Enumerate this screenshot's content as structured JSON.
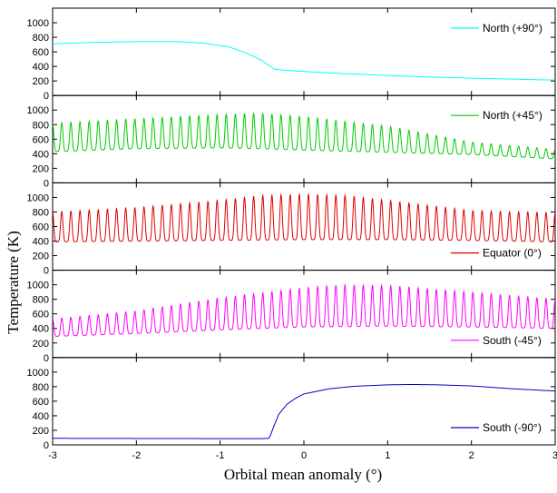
{
  "chart_data": {
    "type": "line",
    "xlabel": "Orbital mean anomaly (°)",
    "ylabel": "Temperature (K)",
    "xlim": [
      -3,
      3
    ],
    "ylim": [
      0,
      1200
    ],
    "xticks": [
      "-3",
      "-2",
      "-1",
      "0",
      "1",
      "2",
      "3"
    ],
    "yticks": [
      "0",
      "200",
      "400",
      "600",
      "800",
      "1000"
    ],
    "panels": [
      {
        "name": "North (+90°)",
        "color": "#00ffff",
        "legend": "top-right",
        "shape": "smooth",
        "points": [
          [
            -3,
            710
          ],
          [
            -2.5,
            730
          ],
          [
            -2,
            740
          ],
          [
            -1.5,
            740
          ],
          [
            -1.2,
            720
          ],
          [
            -0.9,
            670
          ],
          [
            -0.7,
            590
          ],
          [
            -0.5,
            480
          ],
          [
            -0.4,
            400
          ],
          [
            -0.35,
            360
          ],
          [
            -0.2,
            345
          ],
          [
            0,
            330
          ],
          [
            0.5,
            300
          ],
          [
            1,
            275
          ],
          [
            1.5,
            255
          ],
          [
            2,
            238
          ],
          [
            2.5,
            225
          ],
          [
            3,
            212
          ]
        ]
      },
      {
        "name": "North (+45°)",
        "color": "#00cc00",
        "legend": "top-right",
        "shape": "oscillating",
        "cycles": 55,
        "max": [
          [
            -3,
            820
          ],
          [
            -2,
            880
          ],
          [
            -1,
            940
          ],
          [
            -0.5,
            955
          ],
          [
            0,
            910
          ],
          [
            1,
            780
          ],
          [
            2,
            560
          ],
          [
            3,
            460
          ]
        ],
        "min": [
          [
            -3,
            430
          ],
          [
            -2,
            470
          ],
          [
            -1,
            480
          ],
          [
            -0.5,
            470
          ],
          [
            0,
            450
          ],
          [
            1,
            420
          ],
          [
            2,
            390
          ],
          [
            3,
            330
          ]
        ]
      },
      {
        "name": "Equator (0°)",
        "color": "#dd0000",
        "legend": "bottom-right",
        "shape": "oscillating",
        "cycles": 55,
        "max": [
          [
            -3,
            800
          ],
          [
            -2,
            860
          ],
          [
            -1,
            960
          ],
          [
            -0.5,
            1030
          ],
          [
            0,
            1045
          ],
          [
            0.5,
            1030
          ],
          [
            1,
            960
          ],
          [
            2,
            820
          ],
          [
            3,
            790
          ]
        ],
        "min": [
          [
            -3,
            390
          ],
          [
            -2,
            400
          ],
          [
            -1,
            410
          ],
          [
            0,
            420
          ],
          [
            1,
            420
          ],
          [
            2,
            410
          ],
          [
            3,
            390
          ]
        ]
      },
      {
        "name": "South (-45°)",
        "color": "#ff00ff",
        "legend": "bottom-right",
        "shape": "oscillating",
        "cycles": 55,
        "max": [
          [
            -3,
            530
          ],
          [
            -2,
            640
          ],
          [
            -1,
            820
          ],
          [
            0,
            960
          ],
          [
            0.5,
            1000
          ],
          [
            1,
            990
          ],
          [
            2,
            900
          ],
          [
            3,
            800
          ]
        ],
        "min": [
          [
            -3,
            290
          ],
          [
            -2,
            330
          ],
          [
            -1,
            380
          ],
          [
            0,
            420
          ],
          [
            1,
            430
          ],
          [
            2,
            420
          ],
          [
            3,
            400
          ]
        ]
      },
      {
        "name": "South (-90°)",
        "color": "#0000cc",
        "legend": "bottom-right",
        "shape": "smooth",
        "points": [
          [
            -3,
            90
          ],
          [
            -2,
            88
          ],
          [
            -1,
            86
          ],
          [
            -0.5,
            86
          ],
          [
            -0.42,
            90
          ],
          [
            -0.4,
            130
          ],
          [
            -0.35,
            280
          ],
          [
            -0.3,
            420
          ],
          [
            -0.2,
            560
          ],
          [
            -0.1,
            640
          ],
          [
            0,
            700
          ],
          [
            0.3,
            770
          ],
          [
            0.6,
            805
          ],
          [
            1,
            825
          ],
          [
            1.3,
            830
          ],
          [
            1.6,
            825
          ],
          [
            2,
            810
          ],
          [
            2.5,
            770
          ],
          [
            3,
            740
          ]
        ]
      }
    ]
  }
}
